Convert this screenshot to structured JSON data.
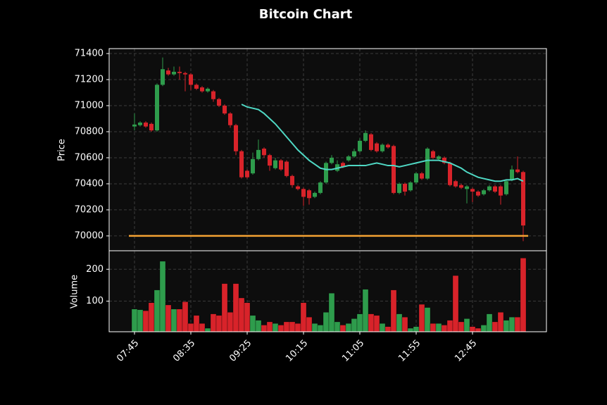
{
  "chart_data": {
    "type": "candlestick",
    "title": "Bitcoin Chart",
    "ylabel": "Price",
    "categories": [
      "07:45",
      null,
      null,
      null,
      null,
      null,
      null,
      null,
      null,
      null,
      "08:35",
      null,
      null,
      null,
      null,
      null,
      null,
      null,
      null,
      null,
      "09:25",
      null,
      null,
      null,
      null,
      null,
      null,
      null,
      null,
      null,
      "10:15",
      null,
      null,
      null,
      null,
      null,
      null,
      null,
      null,
      null,
      "11:05",
      null,
      null,
      null,
      null,
      null,
      null,
      null,
      null,
      null,
      "11:55",
      null,
      null,
      null,
      null,
      null,
      null,
      null,
      null,
      null,
      "12:45",
      null,
      null,
      null,
      null,
      null,
      null,
      null,
      null,
      null
    ],
    "open": [
      70840,
      70850,
      70870,
      70860,
      70810,
      71160,
      71270,
      71240,
      71260,
      71250,
      71240,
      71160,
      71140,
      71110,
      71110,
      71050,
      71000,
      70940,
      70850,
      70650,
      70500,
      70480,
      70590,
      70670,
      70620,
      70520,
      70580,
      70570,
      70460,
      70380,
      70360,
      70350,
      70300,
      70330,
      70410,
      70560,
      70500,
      70560,
      70580,
      70610,
      70650,
      70730,
      70780,
      70710,
      70650,
      70700,
      70690,
      70330,
      70400,
      70350,
      70410,
      70480,
      70440,
      70650,
      70590,
      70600,
      70560,
      70420,
      70390,
      70360,
      70360,
      70340,
      70320,
      70350,
      70380,
      70380,
      70320,
      70430,
      70510,
      70490
    ],
    "high": [
      70940,
      70880,
      70880,
      70870,
      71170,
      71370,
      71290,
      71300,
      71300,
      71260,
      71250,
      71170,
      71150,
      71140,
      71120,
      71060,
      71010,
      70950,
      70860,
      70660,
      70510,
      70640,
      70740,
      70680,
      70630,
      70600,
      70590,
      70580,
      70470,
      70390,
      70370,
      70360,
      70340,
      70420,
      70570,
      70620,
      70580,
      70570,
      70620,
      70670,
      70750,
      70810,
      70790,
      70720,
      70710,
      70710,
      70700,
      70410,
      70410,
      70420,
      70490,
      70490,
      70680,
      70660,
      70620,
      70610,
      70570,
      70430,
      70400,
      70390,
      70370,
      70350,
      70360,
      70390,
      70390,
      70390,
      70430,
      70540,
      70610,
      70500
    ],
    "low": [
      70810,
      70840,
      70830,
      70800,
      70800,
      71150,
      71230,
      71230,
      71200,
      71110,
      71120,
      71120,
      71100,
      71100,
      71030,
      70990,
      70930,
      70830,
      70620,
      70440,
      70440,
      70470,
      70580,
      70600,
      70500,
      70510,
      70500,
      70450,
      70370,
      70350,
      70230,
      70240,
      70290,
      70320,
      70400,
      70550,
      70490,
      70520,
      70570,
      70600,
      70640,
      70720,
      70650,
      70640,
      70640,
      70670,
      70320,
      70320,
      70310,
      70340,
      70400,
      70430,
      70430,
      70590,
      70580,
      70550,
      70380,
      70370,
      70360,
      70250,
      70260,
      70300,
      70310,
      70340,
      70330,
      70240,
      70310,
      70420,
      70480,
      69960
    ],
    "close": [
      70855,
      70870,
      70840,
      70810,
      71160,
      71280,
      71240,
      71260,
      71250,
      71240,
      71160,
      71130,
      71110,
      71130,
      71050,
      71000,
      70940,
      70850,
      70650,
      70450,
      70450,
      70590,
      70660,
      70620,
      70540,
      70580,
      70510,
      70460,
      70390,
      70360,
      70300,
      70290,
      70330,
      70410,
      70560,
      70600,
      70550,
      70530,
      70610,
      70650,
      70730,
      70790,
      70660,
      70650,
      70700,
      70680,
      70330,
      70400,
      70340,
      70410,
      70480,
      70440,
      70670,
      70600,
      70610,
      70560,
      70390,
      70380,
      70370,
      70380,
      70340,
      70310,
      70350,
      70380,
      70340,
      70310,
      70420,
      70510,
      70490,
      70080
    ],
    "up_color": "#2e9c4c",
    "down_color": "#d8232a",
    "ylim": [
      69886,
      71438
    ],
    "yticks": [
      70000,
      70200,
      70400,
      70600,
      70800,
      71000,
      71200,
      71400
    ],
    "grid": true,
    "ma": {
      "color": "#4fd8c4",
      "values": [
        null,
        null,
        null,
        null,
        null,
        null,
        null,
        null,
        null,
        null,
        null,
        null,
        null,
        null,
        null,
        null,
        null,
        null,
        null,
        71010,
        70990,
        70980,
        70970,
        70940,
        70900,
        70860,
        70810,
        70760,
        70710,
        70660,
        70620,
        70580,
        70550,
        70520,
        70510,
        70510,
        70520,
        70530,
        70540,
        70540,
        70540,
        70540,
        70550,
        70560,
        70550,
        70540,
        70540,
        70530,
        70540,
        70550,
        70560,
        70570,
        70580,
        70580,
        70580,
        70570,
        70560,
        70540,
        70520,
        70490,
        70470,
        70450,
        70440,
        70430,
        70420,
        70420,
        70430,
        70430,
        70440,
        70420
      ]
    },
    "hline": {
      "value": 70000,
      "color": "#f5a233"
    },
    "volume": {
      "ylabel": "Volume",
      "ylim": [
        4,
        258
      ],
      "yticks": [
        100,
        200
      ],
      "values": [
        75,
        73,
        70,
        95,
        135,
        225,
        88,
        75,
        75,
        98,
        30,
        55,
        30,
        15,
        60,
        55,
        155,
        65,
        155,
        110,
        95,
        55,
        40,
        25,
        35,
        30,
        25,
        35,
        35,
        30,
        95,
        50,
        30,
        25,
        65,
        125,
        35,
        25,
        30,
        45,
        60,
        137,
        60,
        55,
        30,
        20,
        135,
        60,
        50,
        15,
        20,
        90,
        80,
        30,
        30,
        25,
        40,
        180,
        35,
        45,
        20,
        15,
        25,
        60,
        35,
        65,
        40,
        50,
        50,
        235
      ]
    }
  }
}
